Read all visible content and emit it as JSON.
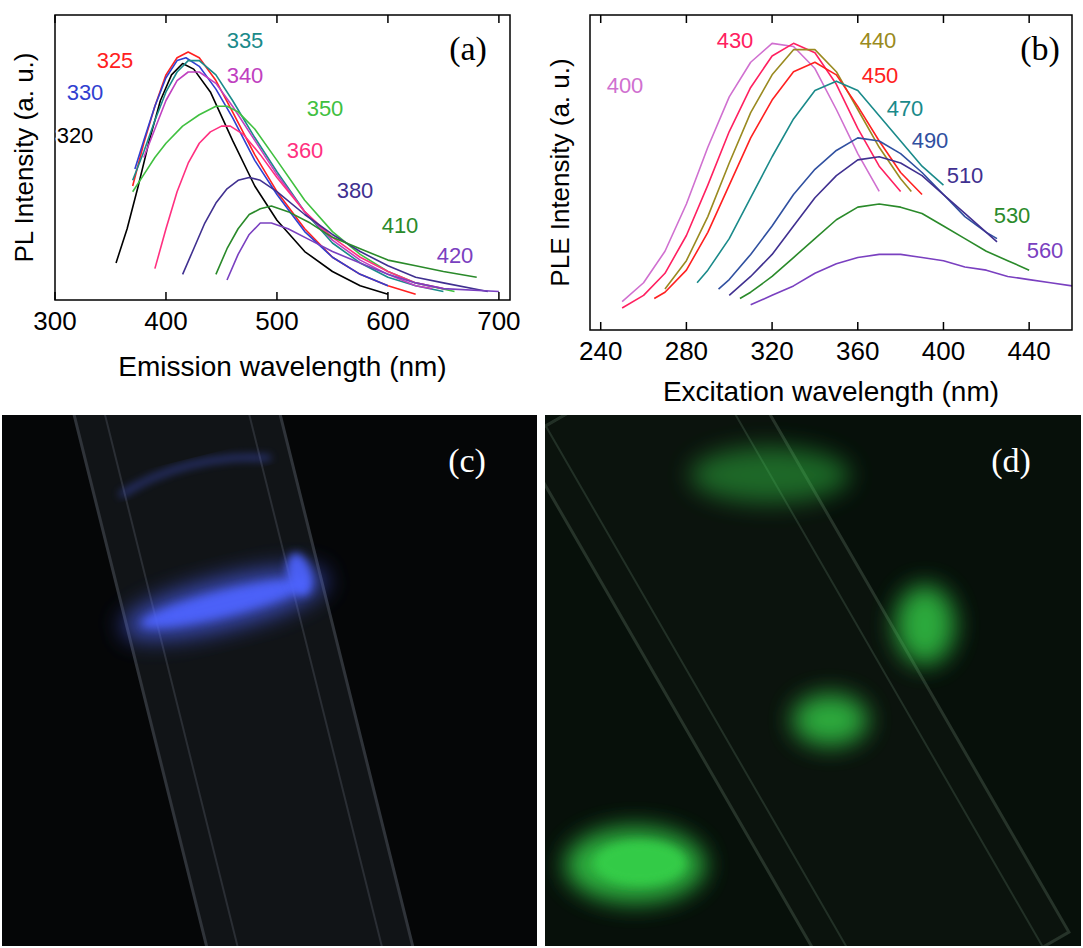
{
  "chart_data": [
    {
      "type": "line",
      "title": "(a)",
      "x_label": "Emission wavelength (nm)",
      "y_label": "PL Intensity (a. u.)",
      "xlim": [
        300,
        710
      ],
      "ylim": [
        0,
        100
      ],
      "xticks": [
        300,
        400,
        500,
        600,
        700
      ],
      "tick_labels": "x",
      "series": [
        {
          "name": "320",
          "color": "#000000",
          "x": [
            355,
            365,
            375,
            385,
            395,
            405,
            415,
            425,
            440,
            460,
            480,
            500,
            525,
            550,
            575,
            600
          ],
          "values": [
            13,
            25,
            40,
            56,
            70,
            79,
            83,
            81,
            73,
            56,
            40,
            28,
            17,
            10,
            5,
            2
          ]
        },
        {
          "name": "325",
          "color": "#ff2020",
          "x": [
            370,
            380,
            390,
            400,
            410,
            420,
            430,
            445,
            460,
            480,
            500,
            525,
            550,
            575,
            600,
            625
          ],
          "values": [
            40,
            55,
            68,
            79,
            85,
            87,
            85,
            77,
            66,
            51,
            38,
            25,
            15,
            9,
            5,
            2
          ]
        },
        {
          "name": "330",
          "color": "#3040d0",
          "x": [
            372,
            380,
            390,
            400,
            410,
            418,
            430,
            445,
            460,
            480,
            500,
            525,
            550,
            575,
            600
          ],
          "values": [
            46,
            56,
            68,
            78,
            84,
            85,
            82,
            74,
            64,
            49,
            37,
            24,
            15,
            9,
            5
          ]
        },
        {
          "name": "335",
          "color": "#1a8a8a",
          "x": [
            370,
            380,
            390,
            400,
            410,
            420,
            430,
            445,
            460,
            480,
            500,
            525,
            550,
            575,
            600,
            625,
            650
          ],
          "values": [
            42,
            52,
            63,
            73,
            80,
            84,
            84,
            79,
            70,
            57,
            45,
            31,
            20,
            13,
            8,
            5,
            3
          ]
        },
        {
          "name": "340",
          "color": "#c040c0",
          "x": [
            380,
            390,
            400,
            410,
            420,
            430,
            445,
            460,
            480,
            500,
            525,
            550,
            575,
            600,
            625,
            640
          ],
          "values": [
            50,
            60,
            70,
            77,
            80,
            80,
            76,
            68,
            56,
            44,
            31,
            21,
            14,
            9,
            5,
            4
          ]
        },
        {
          "name": "350",
          "color": "#40c040",
          "x": [
            370,
            380,
            390,
            400,
            415,
            430,
            445,
            455,
            465,
            480,
            500,
            525,
            550,
            575,
            600,
            625,
            660
          ],
          "values": [
            38,
            44,
            50,
            55,
            61,
            65,
            68,
            68,
            66,
            60,
            49,
            35,
            24,
            16,
            10,
            6,
            3
          ]
        },
        {
          "name": "360",
          "color": "#ff3080",
          "x": [
            390,
            400,
            410,
            420,
            430,
            440,
            450,
            458,
            470,
            485,
            500,
            525,
            550,
            575,
            600,
            625,
            650
          ],
          "values": [
            11,
            25,
            38,
            48,
            55,
            59,
            61,
            61,
            58,
            51,
            43,
            31,
            22,
            15,
            10,
            6,
            4
          ]
        },
        {
          "name": "380",
          "color": "#403090",
          "x": [
            415,
            425,
            435,
            445,
            455,
            465,
            475,
            485,
            500,
            525,
            550,
            575,
            600,
            625,
            650,
            690
          ],
          "values": [
            9,
            18,
            27,
            34,
            39,
            42,
            43,
            42,
            38,
            30,
            23,
            17,
            12,
            8,
            6,
            3
          ]
        },
        {
          "name": "410",
          "color": "#2a8a2a",
          "x": [
            445,
            455,
            465,
            475,
            485,
            495,
            510,
            530,
            550,
            575,
            600,
            625,
            650,
            680
          ],
          "values": [
            9,
            18,
            25,
            30,
            32,
            33,
            31,
            27,
            22,
            18,
            14,
            12,
            10,
            8
          ]
        },
        {
          "name": "420",
          "color": "#7a40c0",
          "x": [
            455,
            465,
            475,
            485,
            495,
            510,
            530,
            550,
            575,
            600,
            625,
            650,
            700
          ],
          "values": [
            7,
            16,
            23,
            27,
            27,
            25,
            21,
            17,
            13,
            9,
            6,
            4,
            3
          ]
        }
      ]
    },
    {
      "type": "line",
      "title": "(b)",
      "x_label": "Excitation wavelength (nm)",
      "y_label": "PLE Intensity (a. u.)",
      "xlim": [
        235,
        460
      ],
      "ylim": [
        0,
        100
      ],
      "xticks": [
        240,
        280,
        320,
        360,
        400,
        440
      ],
      "tick_labels": "x",
      "series": [
        {
          "name": "400",
          "color": "#d070d0",
          "x": [
            250,
            260,
            270,
            280,
            290,
            300,
            310,
            320,
            330,
            340,
            350,
            360,
            370
          ],
          "values": [
            9,
            15,
            25,
            40,
            58,
            74,
            85,
            91,
            90,
            83,
            70,
            56,
            44
          ]
        },
        {
          "name": "430",
          "color": "#ff2060",
          "x": [
            250,
            260,
            270,
            280,
            290,
            300,
            310,
            320,
            330,
            340,
            350,
            360,
            370,
            380
          ],
          "values": [
            7,
            11,
            18,
            30,
            46,
            63,
            77,
            87,
            91,
            88,
            78,
            64,
            52,
            44
          ]
        },
        {
          "name": "440",
          "color": "#9a8a20",
          "x": [
            270,
            280,
            290,
            300,
            310,
            320,
            330,
            340,
            350,
            360,
            370,
            380,
            385
          ],
          "values": [
            13,
            22,
            36,
            53,
            69,
            81,
            89,
            89,
            82,
            70,
            58,
            48,
            44
          ]
        },
        {
          "name": "450",
          "color": "#ff2020",
          "x": [
            265,
            270,
            280,
            290,
            300,
            310,
            320,
            330,
            340,
            350,
            360,
            370,
            380,
            390
          ],
          "values": [
            10,
            12,
            19,
            31,
            46,
            61,
            73,
            82,
            85,
            81,
            71,
            60,
            50,
            43
          ]
        },
        {
          "name": "470",
          "color": "#1a8a8a",
          "x": [
            285,
            290,
            300,
            310,
            320,
            330,
            340,
            350,
            360,
            370,
            380,
            390,
            400
          ],
          "values": [
            15,
            19,
            29,
            42,
            55,
            67,
            76,
            79,
            76,
            68,
            60,
            52,
            46
          ]
        },
        {
          "name": "490",
          "color": "#3050a0",
          "x": [
            295,
            300,
            310,
            320,
            330,
            340,
            350,
            360,
            370,
            380,
            390,
            400,
            410,
            420,
            425
          ],
          "values": [
            13,
            16,
            24,
            33,
            43,
            51,
            57,
            61,
            60,
            56,
            50,
            43,
            36,
            31,
            29
          ]
        },
        {
          "name": "510",
          "color": "#403090",
          "x": [
            300,
            310,
            320,
            330,
            340,
            350,
            360,
            370,
            380,
            390,
            400,
            410,
            420,
            425
          ],
          "values": [
            11,
            17,
            24,
            33,
            42,
            49,
            54,
            55,
            53,
            49,
            43,
            37,
            31,
            28
          ]
        },
        {
          "name": "530",
          "color": "#2a8a2a",
          "x": [
            305,
            310,
            320,
            330,
            340,
            350,
            360,
            370,
            380,
            390,
            400,
            410,
            420,
            430,
            440
          ],
          "values": [
            10,
            12,
            17,
            23,
            29,
            35,
            39,
            40,
            39,
            37,
            33,
            29,
            25,
            22,
            19
          ]
        },
        {
          "name": "560",
          "color": "#7a40c0",
          "x": [
            310,
            320,
            330,
            340,
            350,
            360,
            370,
            380,
            390,
            400,
            410,
            420,
            430,
            440,
            450,
            460
          ],
          "values": [
            8,
            11,
            14,
            18,
            21,
            23,
            24,
            24,
            23,
            22,
            20,
            19,
            17,
            16,
            15,
            14
          ]
        }
      ]
    }
  ],
  "photos": [
    {
      "label": "(c)",
      "color": "#4d63ff"
    },
    {
      "label": "(d)",
      "color": "#35d04a"
    }
  ]
}
